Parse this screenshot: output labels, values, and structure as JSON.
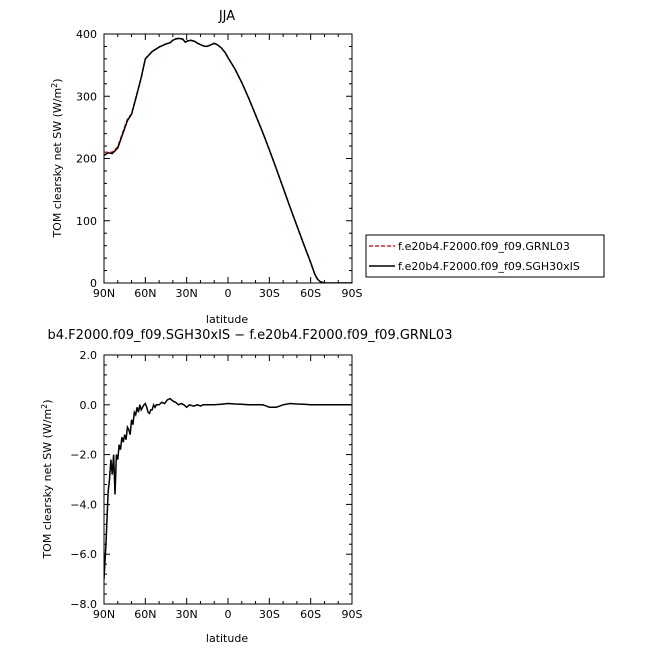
{
  "chart_data": [
    {
      "type": "line",
      "title": "JJA",
      "xlabel": "latitude",
      "ylabel": "TOM clearsky net SW  (W/m",
      "ylabel_sup": "2",
      "ylabel_close": ")",
      "xlim": [
        90,
        -90
      ],
      "ylim": [
        0,
        400
      ],
      "xticks": [
        90,
        60,
        30,
        0,
        -30,
        -60,
        -90
      ],
      "xtick_labels": [
        "90N",
        "60N",
        "30N",
        "0",
        "30S",
        "60S",
        "90S"
      ],
      "yticks": [
        0,
        100,
        200,
        300,
        400
      ],
      "ytick_labels": [
        "0",
        "100",
        "200",
        "300",
        "400"
      ],
      "legend_placement": "right",
      "series": [
        {
          "name": "f.e20b4.F2000.f09_f09.GRNL03",
          "color": "#d62728",
          "dash": "dashed",
          "x": [
            90,
            87,
            84,
            80,
            77,
            73,
            70,
            66,
            63,
            60,
            55,
            50,
            45,
            42,
            40,
            38,
            36,
            33,
            31,
            29,
            27,
            24,
            22,
            20,
            18,
            16,
            14,
            12,
            10,
            8,
            5,
            2,
            0,
            -5,
            -10,
            -15,
            -20,
            -25,
            -30,
            -35,
            -40,
            -45,
            -50,
            -55,
            -60,
            -63,
            -65,
            -67,
            -70,
            -75,
            -80,
            -90
          ],
          "y": [
            210,
            210,
            210,
            219,
            238,
            263,
            272,
            305,
            330,
            360,
            372,
            379,
            384,
            386,
            390,
            392,
            393,
            392,
            387,
            389,
            390,
            388,
            385,
            383,
            381,
            380,
            381,
            383,
            385,
            383,
            378,
            370,
            362,
            344,
            322,
            297,
            270,
            243,
            214,
            184,
            153,
            122,
            92,
            62,
            33,
            14,
            6,
            2,
            0,
            0,
            0,
            0
          ]
        },
        {
          "name": "f.e20b4.F2000.f09_f09.SGH30xIS",
          "color": "#000000",
          "dash": "solid",
          "x": [
            90,
            87,
            84,
            80,
            77,
            73,
            70,
            66,
            63,
            60,
            55,
            50,
            45,
            42,
            40,
            38,
            36,
            33,
            31,
            29,
            27,
            24,
            22,
            20,
            18,
            16,
            14,
            12,
            10,
            8,
            5,
            2,
            0,
            -5,
            -10,
            -15,
            -20,
            -25,
            -30,
            -35,
            -40,
            -45,
            -50,
            -55,
            -60,
            -63,
            -65,
            -67,
            -70,
            -75,
            -80,
            -90
          ],
          "y": [
            205,
            209,
            208,
            217,
            236,
            261,
            271,
            304,
            330,
            360,
            372,
            379,
            384,
            386,
            390,
            392,
            393,
            392,
            387,
            389,
            390,
            388,
            385,
            383,
            381,
            380,
            381,
            383,
            385,
            383,
            378,
            370,
            362,
            344,
            322,
            297,
            270,
            243,
            214,
            184,
            153,
            122,
            92,
            62,
            33,
            14,
            6,
            2,
            0,
            0,
            0,
            0
          ]
        }
      ]
    },
    {
      "type": "line",
      "title": "b4.F2000.f09_f09.SGH30xIS − f.e20b4.F2000.f09_f09.GRNL03",
      "xlabel": "latitude",
      "ylabel": "TOM clearsky net SW  (W/m",
      "ylabel_sup": "2",
      "ylabel_close": ")",
      "xlim": [
        90,
        -90
      ],
      "ylim": [
        -8,
        2
      ],
      "xticks": [
        90,
        60,
        30,
        0,
        -30,
        -60,
        -90
      ],
      "xtick_labels": [
        "90N",
        "60N",
        "30N",
        "0",
        "30S",
        "60S",
        "90S"
      ],
      "yticks": [
        2,
        0,
        -2,
        -4,
        -6,
        -8
      ],
      "ytick_labels": [
        "2.0",
        "0.0",
        "−2.0",
        "−4.0",
        "−6.0",
        "−8.0"
      ],
      "series": [
        {
          "name": "",
          "color": "#000000",
          "dash": "solid",
          "x": [
            90,
            88.5,
            87,
            86,
            85,
            84,
            83,
            82,
            81,
            80,
            79,
            78,
            77,
            76,
            75,
            74,
            73,
            72,
            71,
            70,
            69,
            68,
            67,
            66,
            65,
            64,
            63,
            62,
            61,
            60,
            59,
            58,
            57,
            56,
            55,
            54,
            53,
            52,
            51,
            50,
            48,
            46,
            44,
            42,
            40,
            38,
            36,
            34,
            32,
            30,
            28,
            25,
            22,
            20,
            18,
            15,
            12,
            10,
            5,
            0,
            -5,
            -10,
            -15,
            -20,
            -25,
            -28,
            -30,
            -32,
            -35,
            -40,
            -45,
            -50,
            -55,
            -60,
            -65,
            -70,
            -75,
            -80,
            -85,
            -90
          ],
          "y": [
            -7.0,
            -5.5,
            -3.5,
            -3.0,
            -2.2,
            -2.8,
            -2.0,
            -3.6,
            -2.0,
            -2.2,
            -1.6,
            -1.8,
            -1.3,
            -1.5,
            -1.2,
            -1.4,
            -0.9,
            -1.0,
            -1.2,
            -0.6,
            -0.8,
            -0.3,
            -0.4,
            -0.1,
            -0.3,
            0.0,
            -0.2,
            -0.1,
            0.0,
            0.05,
            -0.1,
            -0.3,
            -0.35,
            -0.2,
            -0.2,
            0.0,
            -0.1,
            0.0,
            0.0,
            0.0,
            0.1,
            0.05,
            0.2,
            0.25,
            0.15,
            0.1,
            0.0,
            0.05,
            0.0,
            -0.1,
            0.0,
            -0.05,
            0.0,
            -0.05,
            0.0,
            0.0,
            0.0,
            0.0,
            0.02,
            0.05,
            0.03,
            0.02,
            0.0,
            0.0,
            0.0,
            -0.05,
            -0.1,
            -0.1,
            -0.1,
            0.0,
            0.05,
            0.03,
            0.02,
            0.0,
            0.0,
            0.0,
            0.0,
            0.0,
            0.0,
            0.0
          ]
        }
      ]
    }
  ]
}
